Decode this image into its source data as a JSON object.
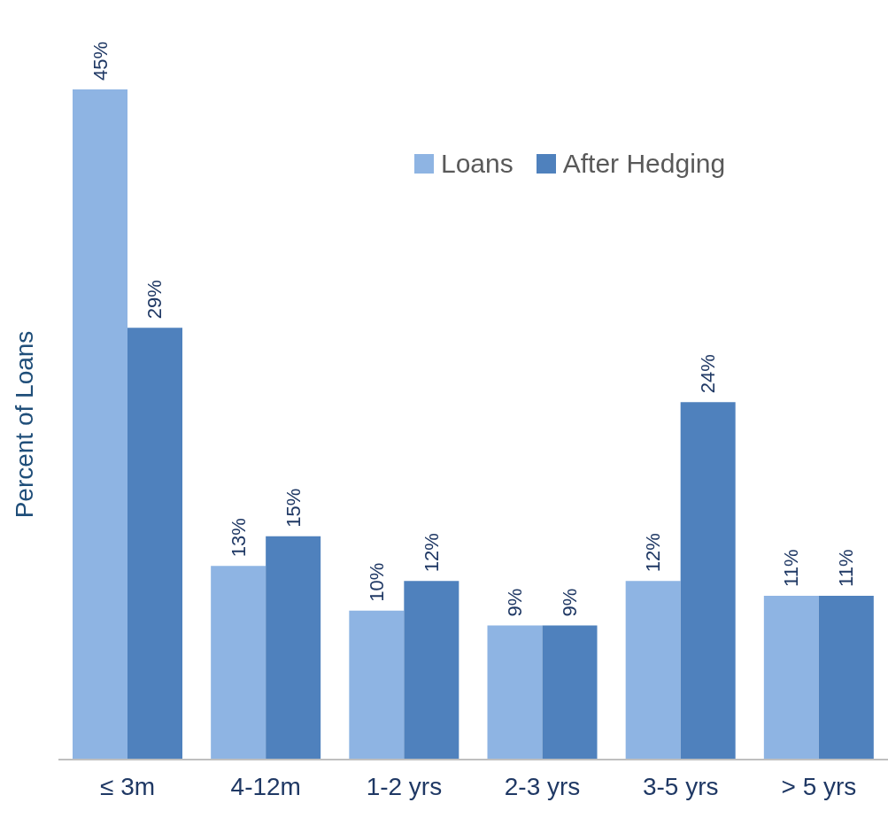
{
  "chart_data": {
    "type": "bar",
    "ylabel": "Percent of Loans",
    "categories": [
      "≤ 3m",
      "4-12m",
      "1-2 yrs",
      "2-3 yrs",
      "3-5 yrs",
      "> 5 yrs"
    ],
    "series": [
      {
        "name": "Loans",
        "color": "#8eb4e3",
        "values": [
          45,
          13,
          10,
          9,
          12,
          11
        ],
        "value_labels": [
          "45%",
          "13%",
          "10%",
          "9%",
          "12%",
          "11%"
        ]
      },
      {
        "name": "After Hedging",
        "color": "#4f81bd",
        "values": [
          29,
          15,
          12,
          9,
          24,
          11
        ],
        "value_labels": [
          "29%",
          "15%",
          "12%",
          "9%",
          "24%",
          "11%"
        ]
      }
    ],
    "tick_labels": "x",
    "legend": "top right"
  }
}
